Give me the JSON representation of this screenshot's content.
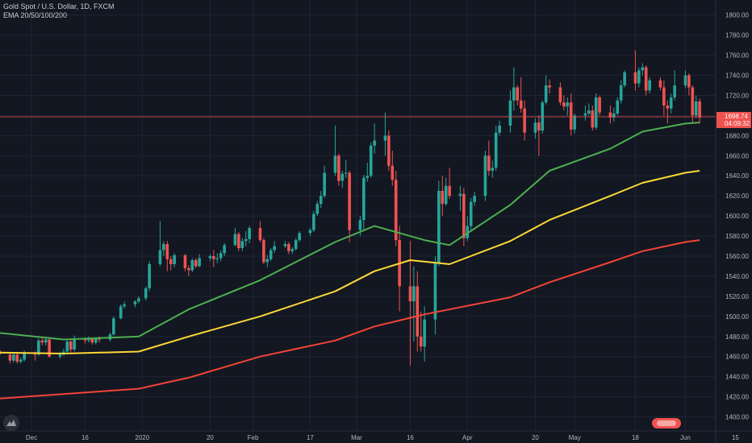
{
  "header": {
    "symbol": "Gold Spot / U.S. Dollar, 1D, FXCM",
    "indicator": "EMA 20/50/100/200"
  },
  "colors": {
    "background": "#131722",
    "grid": "#1f2433",
    "up": "#26a69a",
    "down": "#ef5350",
    "ema_green": "#4caf50",
    "ema_yellow": "#fdd835",
    "ema_red": "#f44336",
    "price_line": "#ef5350"
  },
  "price_label": {
    "price": "1698.74",
    "countdown": "04:09:32"
  },
  "chart_data": {
    "type": "candlestick",
    "y_axis": {
      "range": [
        1386,
        1815
      ],
      "ticks": [
        1400,
        1420,
        1440,
        1460,
        1480,
        1500,
        1520,
        1540,
        1560,
        1580,
        1600,
        1620,
        1640,
        1660,
        1680,
        1700,
        1720,
        1740,
        1760,
        1780,
        1800
      ]
    },
    "x_axis": {
      "labels": [
        "Dec",
        "16",
        "2020",
        "20",
        "Feb",
        "17",
        "Mar",
        "16",
        "Apr",
        "20",
        "May",
        "18",
        "Jun",
        "15"
      ]
    },
    "last_price": 1698.74,
    "ema": [
      {
        "name": "EMA 20",
        "color": "#4caf50",
        "points": [
          [
            "2019-11-21",
            1484
          ],
          [
            "2019-12-10",
            1477
          ],
          [
            "2019-12-31",
            1480
          ],
          [
            "2020-01-14",
            1507
          ],
          [
            "2020-02-03",
            1536
          ],
          [
            "2020-02-24",
            1574
          ],
          [
            "2020-03-06",
            1590
          ],
          [
            "2020-03-20",
            1576
          ],
          [
            "2020-03-27",
            1571
          ],
          [
            "2020-04-13",
            1611
          ],
          [
            "2020-04-24",
            1645
          ],
          [
            "2020-05-11",
            1667
          ],
          [
            "2020-05-20",
            1684
          ],
          [
            "2020-06-01",
            1692
          ],
          [
            "2020-06-05",
            1693
          ]
        ]
      },
      {
        "name": "EMA 50",
        "color": "#fdd835",
        "points": [
          [
            "2019-11-21",
            1464
          ],
          [
            "2019-12-10",
            1463
          ],
          [
            "2019-12-31",
            1465
          ],
          [
            "2020-01-14",
            1480
          ],
          [
            "2020-02-03",
            1500
          ],
          [
            "2020-02-24",
            1525
          ],
          [
            "2020-03-06",
            1545
          ],
          [
            "2020-03-16",
            1556
          ],
          [
            "2020-03-27",
            1552
          ],
          [
            "2020-04-13",
            1575
          ],
          [
            "2020-04-24",
            1596
          ],
          [
            "2020-05-11",
            1620
          ],
          [
            "2020-05-20",
            1633
          ],
          [
            "2020-06-01",
            1643
          ],
          [
            "2020-06-05",
            1645
          ]
        ]
      },
      {
        "name": "EMA 100",
        "color": "#f44336",
        "points": [
          [
            "2019-11-21",
            1418
          ],
          [
            "2019-12-31",
            1428
          ],
          [
            "2020-01-14",
            1439
          ],
          [
            "2020-02-03",
            1460
          ],
          [
            "2020-02-24",
            1476
          ],
          [
            "2020-03-06",
            1490
          ],
          [
            "2020-03-20",
            1502
          ],
          [
            "2020-04-13",
            1519
          ],
          [
            "2020-04-24",
            1534
          ],
          [
            "2020-05-11",
            1554
          ],
          [
            "2020-05-20",
            1565
          ],
          [
            "2020-06-01",
            1574
          ],
          [
            "2020-06-05",
            1576
          ]
        ]
      }
    ],
    "candles": [
      [
        "2019-11-21",
        1469,
        1471,
        1462,
        1466
      ],
      [
        "2019-11-22",
        1466,
        1468,
        1459,
        1462
      ],
      [
        "2019-11-25",
        1462,
        1464,
        1453,
        1456
      ],
      [
        "2019-11-26",
        1456,
        1463,
        1454,
        1462
      ],
      [
        "2019-11-27",
        1462,
        1463,
        1453,
        1455
      ],
      [
        "2019-11-28",
        1455,
        1459,
        1453,
        1457
      ],
      [
        "2019-11-29",
        1457,
        1466,
        1455,
        1464
      ],
      [
        "2019-12-02",
        1464,
        1465,
        1456,
        1462
      ],
      [
        "2019-12-03",
        1462,
        1478,
        1461,
        1476
      ],
      [
        "2019-12-04",
        1476,
        1480,
        1471,
        1474
      ],
      [
        "2019-12-05",
        1474,
        1479,
        1471,
        1477
      ],
      [
        "2019-12-06",
        1477,
        1478,
        1459,
        1460
      ],
      [
        "2019-12-09",
        1460,
        1465,
        1458,
        1462
      ],
      [
        "2019-12-10",
        1462,
        1468,
        1461,
        1465
      ],
      [
        "2019-12-11",
        1465,
        1477,
        1463,
        1475
      ],
      [
        "2019-12-12",
        1475,
        1477,
        1464,
        1467
      ],
      [
        "2019-12-13",
        1467,
        1481,
        1465,
        1477
      ],
      [
        "2019-12-16",
        1477,
        1479,
        1473,
        1476
      ],
      [
        "2019-12-17",
        1476,
        1480,
        1474,
        1478
      ],
      [
        "2019-12-18",
        1478,
        1479,
        1472,
        1474
      ],
      [
        "2019-12-19",
        1474,
        1479,
        1472,
        1478
      ],
      [
        "2019-12-20",
        1478,
        1480,
        1474,
        1477
      ],
      [
        "2019-12-23",
        1477,
        1484,
        1475,
        1482
      ],
      [
        "2019-12-24",
        1482,
        1500,
        1481,
        1498
      ],
      [
        "2019-12-26",
        1498,
        1512,
        1497,
        1510
      ],
      [
        "2019-12-27",
        1510,
        1515,
        1508,
        1512
      ],
      [
        "2019-12-30",
        1512,
        1516,
        1509,
        1515
      ],
      [
        "2019-12-31",
        1515,
        1520,
        1513,
        1518
      ],
      [
        "2020-01-02",
        1518,
        1530,
        1516,
        1528
      ],
      [
        "2020-01-03",
        1528,
        1555,
        1525,
        1552
      ],
      [
        "2020-01-06",
        1552,
        1595,
        1550,
        1566
      ],
      [
        "2020-01-07",
        1566,
        1575,
        1560,
        1572
      ],
      [
        "2020-01-08",
        1572,
        1575,
        1545,
        1557
      ],
      [
        "2020-01-09",
        1557,
        1560,
        1546,
        1552
      ],
      [
        "2020-01-10",
        1552,
        1563,
        1549,
        1561
      ],
      [
        "2020-01-13",
        1561,
        1562,
        1545,
        1548
      ],
      [
        "2020-01-14",
        1548,
        1551,
        1540,
        1546
      ],
      [
        "2020-01-15",
        1546,
        1558,
        1544,
        1556
      ],
      [
        "2020-01-16",
        1556,
        1558,
        1548,
        1550
      ],
      [
        "2020-01-17",
        1550,
        1562,
        1549,
        1558
      ],
      [
        "2020-01-20",
        1558,
        1562,
        1555,
        1560
      ],
      [
        "2020-01-21",
        1560,
        1566,
        1549,
        1557
      ],
      [
        "2020-01-22",
        1557,
        1563,
        1553,
        1558
      ],
      [
        "2020-01-23",
        1558,
        1566,
        1555,
        1563
      ],
      [
        "2020-01-24",
        1563,
        1573,
        1560,
        1571
      ],
      [
        "2020-01-27",
        1571,
        1588,
        1570,
        1582
      ],
      [
        "2020-01-28",
        1582,
        1584,
        1565,
        1568
      ],
      [
        "2020-01-29",
        1568,
        1578,
        1565,
        1575
      ],
      [
        "2020-01-30",
        1575,
        1585,
        1570,
        1577
      ],
      [
        "2020-01-31",
        1577,
        1590,
        1573,
        1588
      ],
      [
        "2020-02-03",
        1588,
        1595,
        1574,
        1576
      ],
      [
        "2020-02-04",
        1576,
        1578,
        1552,
        1554
      ],
      [
        "2020-02-05",
        1554,
        1561,
        1549,
        1557
      ],
      [
        "2020-02-06",
        1557,
        1568,
        1555,
        1566
      ],
      [
        "2020-02-07",
        1566,
        1575,
        1563,
        1570
      ],
      [
        "2020-02-10",
        1570,
        1575,
        1568,
        1572
      ],
      [
        "2020-02-11",
        1572,
        1574,
        1562,
        1565
      ],
      [
        "2020-02-12",
        1565,
        1569,
        1562,
        1567
      ],
      [
        "2020-02-13",
        1567,
        1578,
        1566,
        1576
      ],
      [
        "2020-02-14",
        1576,
        1585,
        1574,
        1583
      ],
      [
        "2020-02-17",
        1583,
        1588,
        1580,
        1586
      ],
      [
        "2020-02-18",
        1586,
        1605,
        1584,
        1602
      ],
      [
        "2020-02-19",
        1602,
        1615,
        1600,
        1612
      ],
      [
        "2020-02-20",
        1612,
        1625,
        1608,
        1620
      ],
      [
        "2020-02-21",
        1620,
        1650,
        1618,
        1643
      ],
      [
        "2020-02-24",
        1643,
        1690,
        1640,
        1660
      ],
      [
        "2020-02-25",
        1660,
        1662,
        1630,
        1635
      ],
      [
        "2020-02-26",
        1635,
        1645,
        1628,
        1642
      ],
      [
        "2020-02-27",
        1642,
        1656,
        1638,
        1643
      ],
      [
        "2020-02-28",
        1643,
        1645,
        1574,
        1586
      ],
      [
        "2020-03-02",
        1586,
        1600,
        1580,
        1596
      ],
      [
        "2020-03-03",
        1596,
        1641,
        1585,
        1638
      ],
      [
        "2020-03-04",
        1638,
        1653,
        1634,
        1640
      ],
      [
        "2020-03-05",
        1640,
        1673,
        1638,
        1670
      ],
      [
        "2020-03-06",
        1670,
        1692,
        1662,
        1675
      ],
      [
        "2020-03-09",
        1675,
        1703,
        1660,
        1680
      ],
      [
        "2020-03-10",
        1680,
        1685,
        1645,
        1650
      ],
      [
        "2020-03-11",
        1650,
        1665,
        1630,
        1636
      ],
      [
        "2020-03-12",
        1636,
        1645,
        1570,
        1576
      ],
      [
        "2020-03-13",
        1576,
        1590,
        1505,
        1530
      ],
      [
        "2020-03-16",
        1530,
        1575,
        1451,
        1515
      ],
      [
        "2020-03-17",
        1515,
        1550,
        1475,
        1530
      ],
      [
        "2020-03-18",
        1530,
        1545,
        1465,
        1480
      ],
      [
        "2020-03-19",
        1480,
        1505,
        1465,
        1470
      ],
      [
        "2020-03-20",
        1470,
        1510,
        1455,
        1497
      ],
      [
        "2020-03-23",
        1497,
        1560,
        1482,
        1553
      ],
      [
        "2020-03-24",
        1553,
        1635,
        1550,
        1625
      ],
      [
        "2020-03-25",
        1625,
        1640,
        1600,
        1612
      ],
      [
        "2020-03-26",
        1612,
        1638,
        1610,
        1630
      ],
      [
        "2020-03-27",
        1630,
        1648,
        1617,
        1620
      ],
      [
        "2020-03-30",
        1620,
        1630,
        1605,
        1622
      ],
      [
        "2020-03-31",
        1622,
        1628,
        1570,
        1578
      ],
      [
        "2020-04-01",
        1578,
        1600,
        1575,
        1590
      ],
      [
        "2020-04-02",
        1590,
        1618,
        1585,
        1614
      ],
      [
        "2020-04-03",
        1614,
        1624,
        1610,
        1620
      ],
      [
        "2020-04-06",
        1620,
        1665,
        1615,
        1660
      ],
      [
        "2020-04-07",
        1660,
        1675,
        1640,
        1645
      ],
      [
        "2020-04-08",
        1645,
        1655,
        1638,
        1648
      ],
      [
        "2020-04-09",
        1648,
        1690,
        1645,
        1683
      ],
      [
        "2020-04-10",
        1683,
        1695,
        1680,
        1690
      ],
      [
        "2020-04-13",
        1690,
        1725,
        1683,
        1715
      ],
      [
        "2020-04-14",
        1715,
        1748,
        1705,
        1728
      ],
      [
        "2020-04-15",
        1728,
        1730,
        1710,
        1715
      ],
      [
        "2020-04-16",
        1715,
        1738,
        1703,
        1707
      ],
      [
        "2020-04-17",
        1707,
        1715,
        1675,
        1683
      ],
      [
        "2020-04-20",
        1683,
        1697,
        1677,
        1693
      ],
      [
        "2020-04-21",
        1693,
        1700,
        1660,
        1685
      ],
      [
        "2020-04-22",
        1685,
        1715,
        1682,
        1713
      ],
      [
        "2020-04-23",
        1713,
        1740,
        1711,
        1730
      ],
      [
        "2020-04-24",
        1730,
        1736,
        1722,
        1728
      ],
      [
        "2020-04-27",
        1728,
        1733,
        1710,
        1713
      ],
      [
        "2020-04-28",
        1713,
        1720,
        1705,
        1709
      ],
      [
        "2020-04-29",
        1709,
        1718,
        1700,
        1713
      ],
      [
        "2020-04-30",
        1713,
        1722,
        1680,
        1686
      ],
      [
        "2020-05-01",
        1686,
        1702,
        1682,
        1700
      ],
      [
        "2020-05-04",
        1700,
        1710,
        1695,
        1702
      ],
      [
        "2020-05-05",
        1702,
        1712,
        1700,
        1705
      ],
      [
        "2020-05-06",
        1705,
        1710,
        1685,
        1688
      ],
      [
        "2020-05-07",
        1688,
        1722,
        1686,
        1718
      ],
      [
        "2020-05-08",
        1718,
        1720,
        1700,
        1703
      ],
      [
        "2020-05-11",
        1703,
        1710,
        1692,
        1698
      ],
      [
        "2020-05-12",
        1698,
        1708,
        1694,
        1702
      ],
      [
        "2020-05-13",
        1702,
        1718,
        1700,
        1715
      ],
      [
        "2020-05-14",
        1715,
        1735,
        1712,
        1730
      ],
      [
        "2020-05-15",
        1730,
        1745,
        1728,
        1743
      ],
      [
        "2020-05-18",
        1743,
        1765,
        1725,
        1732
      ],
      [
        "2020-05-19",
        1732,
        1748,
        1728,
        1745
      ],
      [
        "2020-05-20",
        1745,
        1752,
        1740,
        1748
      ],
      [
        "2020-05-21",
        1748,
        1750,
        1720,
        1725
      ],
      [
        "2020-05-22",
        1725,
        1738,
        1722,
        1735
      ],
      [
        "2020-05-25",
        1735,
        1738,
        1725,
        1728
      ],
      [
        "2020-05-26",
        1728,
        1735,
        1700,
        1710
      ],
      [
        "2020-05-27",
        1710,
        1715,
        1692,
        1707
      ],
      [
        "2020-05-28",
        1707,
        1722,
        1702,
        1718
      ],
      [
        "2020-05-29",
        1718,
        1745,
        1715,
        1730
      ],
      [
        "2020-06-01",
        1730,
        1745,
        1727,
        1740
      ],
      [
        "2020-06-02",
        1740,
        1742,
        1720,
        1728
      ],
      [
        "2020-06-03",
        1728,
        1730,
        1693,
        1700
      ],
      [
        "2020-06-04",
        1700,
        1720,
        1697,
        1714
      ],
      [
        "2020-06-05",
        1714,
        1717,
        1692,
        1698
      ]
    ]
  }
}
